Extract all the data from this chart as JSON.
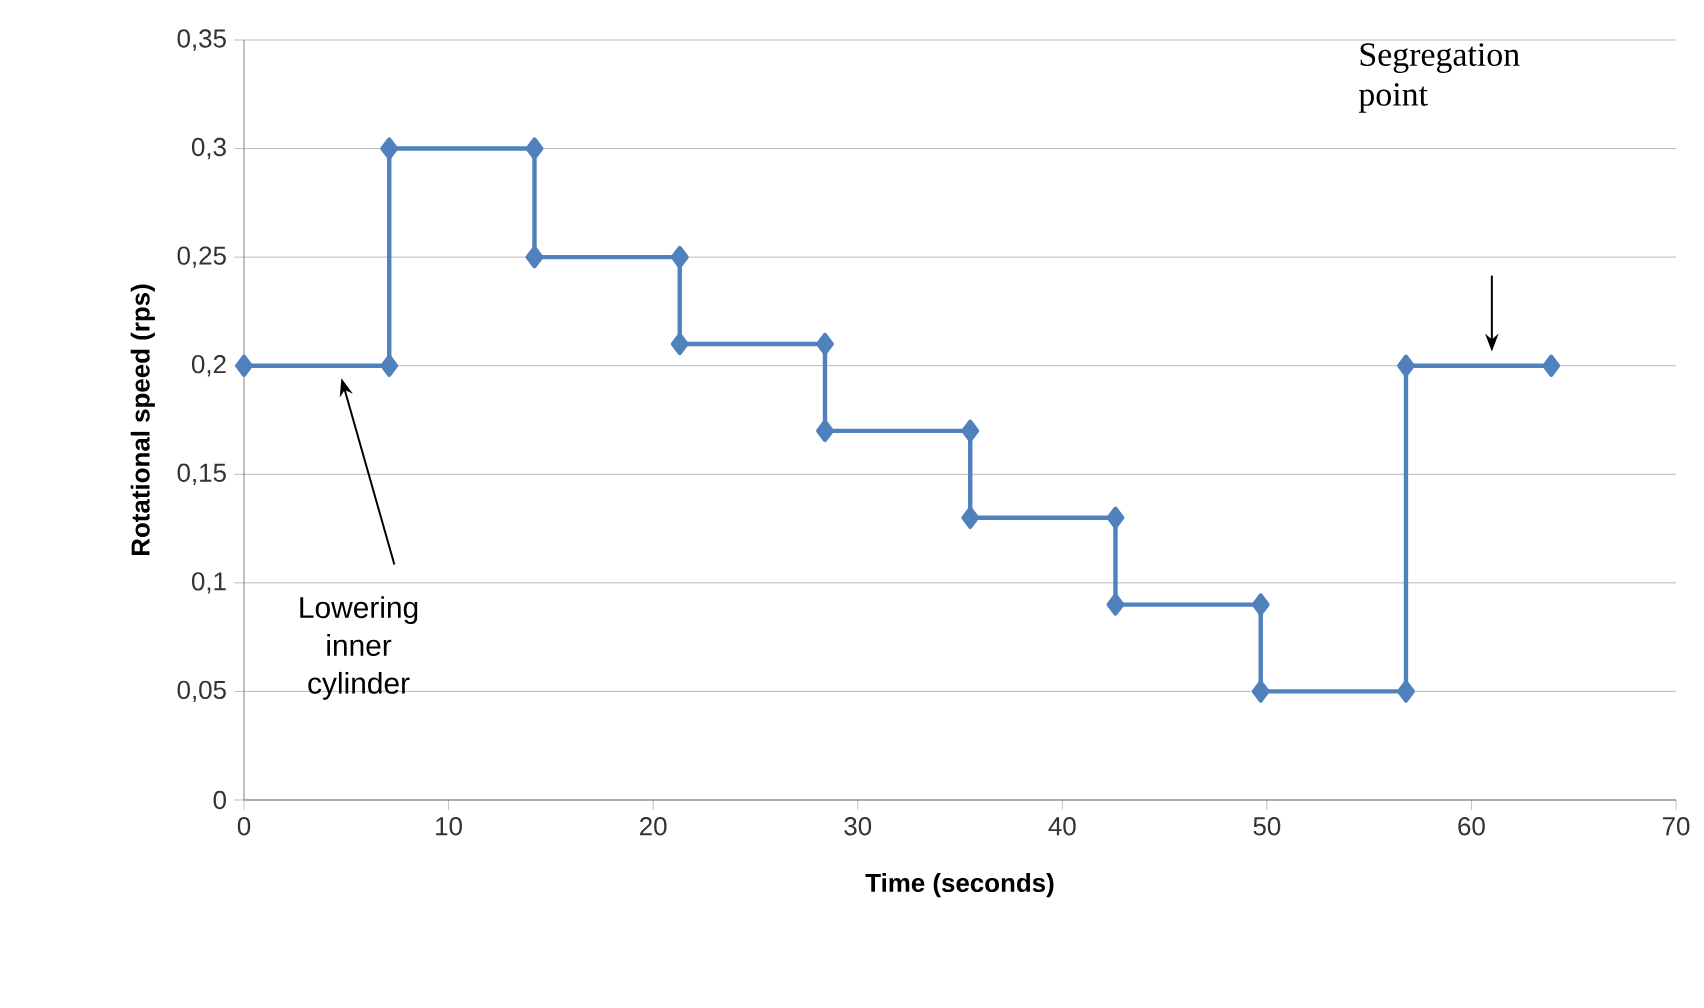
{
  "chart_data": {
    "type": "line",
    "xlabel": "Time (seconds)",
    "ylabel": "Rotational speed (rps)",
    "x": [
      0,
      7.1,
      7.1,
      14.2,
      14.2,
      21.3,
      21.3,
      28.4,
      28.4,
      35.5,
      35.5,
      42.6,
      42.6,
      49.7,
      49.7,
      56.8,
      56.8,
      63.9
    ],
    "series": [
      {
        "color": "#4f81bd",
        "values": [
          0.2,
          0.2,
          0.3,
          0.3,
          0.25,
          0.25,
          0.21,
          0.21,
          0.17,
          0.17,
          0.13,
          0.13,
          0.09,
          0.09,
          0.05,
          0.05,
          0.2,
          0.2
        ]
      }
    ],
    "xlim": [
      0,
      70
    ],
    "xticks": [
      0,
      10,
      20,
      30,
      40,
      50,
      60,
      70
    ],
    "ylim": [
      0,
      0.35
    ],
    "yticks": [
      0,
      {
        "value": 0.05,
        "label": "0,05"
      },
      {
        "value": 0.1,
        "label": "0,1"
      },
      {
        "value": 0.15,
        "label": "0,15"
      },
      {
        "value": 0.2,
        "label": "0,2"
      },
      {
        "value": 0.25,
        "label": "0,25"
      },
      {
        "value": 0.3,
        "label": "0,3"
      },
      {
        "value": 0.35,
        "label": "0,35"
      }
    ],
    "grid": "y",
    "marker": "diamond",
    "line_style": "solid",
    "annotations": [
      "Lowering inner cylinder",
      "Segregation point"
    ]
  }
}
